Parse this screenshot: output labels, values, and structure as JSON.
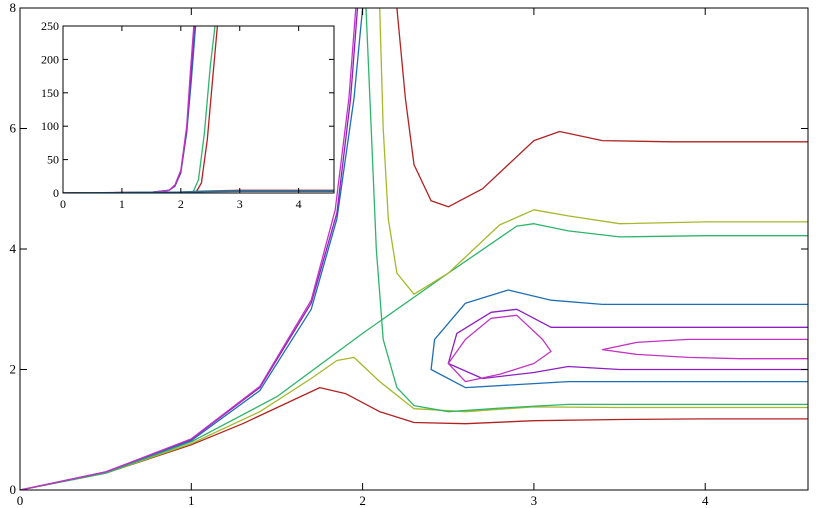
{
  "chart_data": [
    {
      "type": "line",
      "title": "",
      "xlabel": "",
      "ylabel": "",
      "xlim": [
        0,
        4.6
      ],
      "ylim": [
        0,
        8
      ],
      "xticks": [
        0,
        1,
        2,
        3,
        4
      ],
      "yticks": [
        0,
        2,
        4,
        6,
        8
      ],
      "grid": false,
      "legend": "none",
      "series": [
        {
          "color": "#b22222",
          "x": [
            0,
            0.5,
            1,
            1.3,
            1.6,
            1.75,
            1.9,
            2.1,
            2.3,
            2.6,
            3.0,
            3.5,
            4.0,
            4.6
          ],
          "y": [
            0,
            0.28,
            0.75,
            1.1,
            1.5,
            1.7,
            1.6,
            1.3,
            1.12,
            1.1,
            1.15,
            1.17,
            1.18,
            1.18
          ]
        },
        {
          "color": "#a7b82a",
          "x": [
            0,
            0.5,
            1,
            1.4,
            1.7,
            1.85,
            1.95,
            2.1,
            2.3,
            2.6,
            3.0,
            3.5,
            4.0,
            4.6
          ],
          "y": [
            0,
            0.28,
            0.77,
            1.3,
            1.85,
            2.15,
            2.2,
            1.8,
            1.35,
            1.3,
            1.38,
            1.37,
            1.37,
            1.37
          ]
        },
        {
          "color": "#2cb56b",
          "x": [
            0,
            0.5,
            1,
            1.5,
            2.0,
            2.5,
            2.9,
            3.0,
            3.2,
            3.5,
            4.0,
            4.6
          ],
          "y": [
            0,
            0.28,
            0.8,
            1.55,
            2.6,
            3.6,
            4.38,
            4.42,
            4.3,
            4.2,
            4.22,
            4.22
          ]
        },
        {
          "color": "#2cb56b",
          "x": [
            2.02,
            2.05,
            2.08,
            2.12,
            2.2,
            2.3,
            2.5,
            2.8,
            3.2,
            4.0,
            4.6
          ],
          "y": [
            8.0,
            6.0,
            4.0,
            2.5,
            1.7,
            1.4,
            1.3,
            1.36,
            1.42,
            1.42,
            1.42
          ]
        },
        {
          "color": "#a7b82a",
          "x": [
            2.1,
            2.12,
            2.15,
            2.2,
            2.3,
            2.5,
            2.8,
            3.0,
            3.2,
            3.5,
            4.0,
            4.6
          ],
          "y": [
            8.0,
            6.0,
            4.5,
            3.6,
            3.25,
            3.6,
            4.4,
            4.65,
            4.55,
            4.42,
            4.45,
            4.45
          ]
        },
        {
          "color": "#b22222",
          "x": [
            2.2,
            2.25,
            2.3,
            2.4,
            2.5,
            2.7,
            3.0,
            3.15,
            3.4,
            3.8,
            4.6
          ],
          "y": [
            8.0,
            6.5,
            5.4,
            4.8,
            4.7,
            5.0,
            5.8,
            5.95,
            5.8,
            5.78,
            5.78
          ]
        },
        {
          "color": "#1f6fb4",
          "x": [
            0,
            0.5,
            1,
            1.4,
            1.7,
            1.85,
            1.95,
            2.0
          ],
          "y": [
            0,
            0.3,
            0.82,
            1.65,
            3.0,
            4.5,
            6.5,
            8.0
          ]
        },
        {
          "color": "#8c1fc0",
          "x": [
            0,
            0.5,
            1,
            1.4,
            1.7,
            1.85,
            1.93,
            1.97
          ],
          "y": [
            0,
            0.3,
            0.84,
            1.7,
            3.1,
            4.6,
            6.5,
            8.0
          ]
        },
        {
          "color": "#c235c2",
          "x": [
            0,
            0.5,
            1,
            1.4,
            1.7,
            1.84,
            1.92,
            1.96
          ],
          "y": [
            0,
            0.3,
            0.85,
            1.72,
            3.15,
            4.65,
            6.5,
            8.0
          ]
        },
        {
          "color": "#1f6fb4",
          "x": [
            4.6,
            3.5,
            3.2,
            2.9,
            2.6,
            2.4,
            2.42,
            2.6,
            2.85,
            3.1,
            3.4,
            4.6
          ],
          "y": [
            1.8,
            1.8,
            1.8,
            1.75,
            1.7,
            2.0,
            2.5,
            3.1,
            3.32,
            3.15,
            3.08,
            3.08
          ]
        },
        {
          "color": "#8c1fc0",
          "x": [
            4.6,
            3.5,
            3.2,
            3.0,
            2.7,
            2.5,
            2.55,
            2.75,
            2.9,
            3.1,
            3.4,
            4.6
          ],
          "y": [
            2.0,
            2.0,
            2.05,
            1.95,
            1.85,
            2.1,
            2.6,
            2.95,
            3.0,
            2.7,
            2.7,
            2.7
          ]
        },
        {
          "color": "#c235c2",
          "x": [
            2.5,
            2.6,
            2.75,
            2.9,
            3.05,
            3.1,
            3.0,
            2.8,
            2.6,
            2.5
          ],
          "y": [
            2.1,
            2.5,
            2.85,
            2.9,
            2.5,
            2.3,
            2.1,
            1.92,
            1.8,
            2.1
          ]
        },
        {
          "color": "#c235c2",
          "x": [
            3.4,
            3.6,
            3.9,
            4.2,
            4.6,
            4.6,
            4.2,
            3.9,
            3.6,
            3.4
          ],
          "y": [
            2.33,
            2.45,
            2.5,
            2.5,
            2.5,
            2.18,
            2.18,
            2.2,
            2.25,
            2.33
          ]
        }
      ]
    },
    {
      "type": "line",
      "title": "",
      "xlabel": "",
      "ylabel": "",
      "xlim": [
        0,
        4.6
      ],
      "ylim": [
        0,
        250
      ],
      "xticks": [
        0,
        1,
        2,
        3,
        4
      ],
      "yticks": [
        0,
        50,
        100,
        150,
        200,
        250
      ],
      "grid": false,
      "legend": "none",
      "series": [
        {
          "color": "#1f6fb4",
          "x": [
            0,
            1.5,
            1.8,
            1.9,
            2.0,
            2.1,
            2.18,
            2.25
          ],
          "y": [
            0,
            1,
            4,
            10,
            30,
            90,
            170,
            250
          ]
        },
        {
          "color": "#8c1fc0",
          "x": [
            0,
            1.5,
            1.8,
            1.9,
            2.0,
            2.1,
            2.17,
            2.23
          ],
          "y": [
            0,
            1,
            4,
            11,
            32,
            95,
            175,
            250
          ]
        },
        {
          "color": "#c235c2",
          "x": [
            0,
            1.5,
            1.8,
            1.9,
            2.0,
            2.1,
            2.16,
            2.22
          ],
          "y": [
            0,
            1,
            4,
            12,
            34,
            100,
            180,
            250
          ]
        },
        {
          "color": "#2cb56b",
          "x": [
            2.2,
            2.3,
            2.4,
            2.5,
            2.58
          ],
          "y": [
            0,
            20,
            90,
            190,
            250
          ]
        },
        {
          "color": "#b22222",
          "x": [
            2.25,
            2.35,
            2.45,
            2.55,
            2.62
          ],
          "y": [
            0,
            15,
            80,
            180,
            250
          ]
        },
        {
          "color": "#b22222",
          "x": [
            0,
            2,
            2.4,
            3,
            4,
            4.6
          ],
          "y": [
            0,
            1.5,
            3,
            4,
            4,
            4
          ]
        },
        {
          "color": "#2cb56b",
          "x": [
            0,
            2,
            2.4,
            3,
            4,
            4.6
          ],
          "y": [
            0,
            1.4,
            2.5,
            3,
            3,
            3
          ]
        },
        {
          "color": "#1f6fb4",
          "x": [
            0,
            2,
            2.4,
            3,
            4,
            4.6
          ],
          "y": [
            0,
            1.2,
            2,
            2.5,
            2.5,
            2.5
          ]
        }
      ]
    }
  ]
}
